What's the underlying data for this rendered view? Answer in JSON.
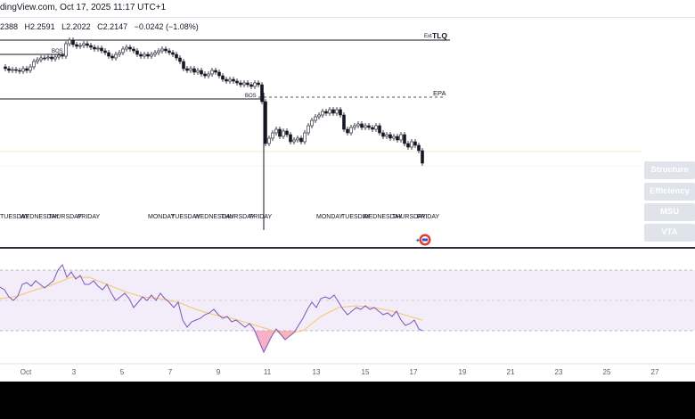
{
  "header": {
    "title": "dingView.com, Oct 17, 2025 11:17 UTC+1"
  },
  "ohlc": {
    "o": "2388",
    "h": "H2.2591",
    "l": "L2.2022",
    "c": "C2.2147",
    "chg": "−0.0242 (−1.08%)"
  },
  "annotations": {
    "bos_1": "BOS",
    "bos_2": "BOS",
    "ext_label": "Ext",
    "tlq": "TLQ",
    "epa": "EPA"
  },
  "day_labels": [
    {
      "text": "TUESDAY",
      "x": 0
    },
    {
      "text": "WEDNESDAY",
      "x": 22
    },
    {
      "text": "THURSDAY",
      "x": 54
    },
    {
      "text": "FRIDAY",
      "x": 87
    },
    {
      "text": "MONDAY",
      "x": 166
    },
    {
      "text": "TUESDAY",
      "x": 192
    },
    {
      "text": "WEDNESDAY",
      "x": 218
    },
    {
      "text": "THURSDAY",
      "x": 248
    },
    {
      "text": "FRIDAY",
      "x": 280
    },
    {
      "text": "MONDAY",
      "x": 355
    },
    {
      "text": "TUESDAY",
      "x": 383
    },
    {
      "text": "WEDNESDAY",
      "x": 407
    },
    {
      "text": "THURSDAY",
      "x": 440
    },
    {
      "text": "FRIDAY",
      "x": 468
    }
  ],
  "side_buttons": {
    "structure": "Structure",
    "efficiency": "Efficiency",
    "msu": "MSU",
    "vta": "VTA"
  },
  "x_axis": [
    "Oct",
    "3",
    "5",
    "7",
    "9",
    "11",
    "13",
    "15",
    "17",
    "19",
    "21",
    "23",
    "25",
    "27"
  ],
  "colors": {
    "bull": "#ffffff",
    "bear": "#131722",
    "rsi": "#7e57c2",
    "rsi_ma": "#f7c66b",
    "rsi_band": "#ede7f6"
  },
  "chart_data": {
    "type": "candlestick",
    "ohlc_x_dates": [
      "Oct 1",
      "Oct 3",
      "Oct 5",
      "Oct 7",
      "Oct 9",
      "Oct 11",
      "Oct 13",
      "Oct 15",
      "Oct 17"
    ],
    "rsi_range": [
      0,
      100
    ]
  }
}
